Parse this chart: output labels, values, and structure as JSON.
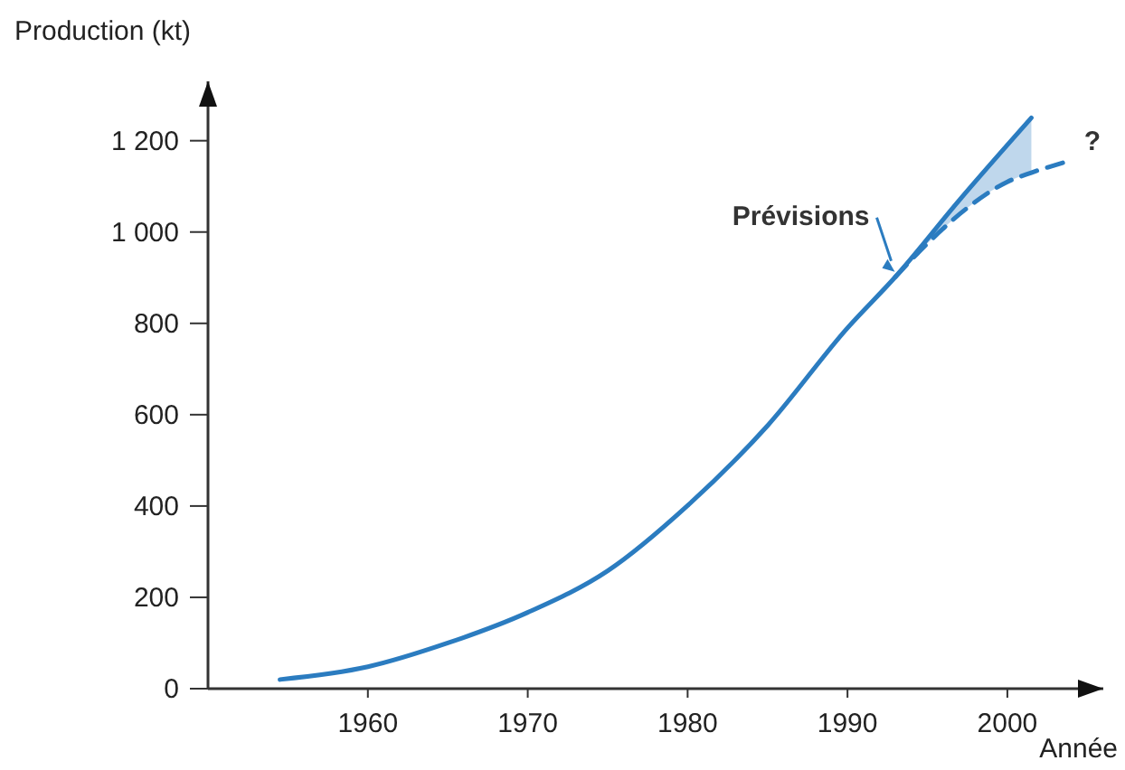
{
  "chart_data": {
    "type": "line",
    "xlabel": "Année",
    "ylabel": "Production (kt)",
    "xlim": [
      1950,
      2006
    ],
    "ylim": [
      0,
      1330
    ],
    "xticks": [
      1960,
      1970,
      1980,
      1990,
      2000
    ],
    "yticks": [
      0,
      200,
      400,
      600,
      800,
      {
        "value": 1000,
        "label": "1 000"
      },
      {
        "value": 1200,
        "label": "1 200"
      }
    ],
    "grid": false,
    "series": [
      {
        "color": "#2b7cc0",
        "line_style": "solid",
        "x": [
          1954.5,
          1960,
          1965,
          1970,
          1975,
          1980,
          1985,
          1990,
          1993,
          1997,
          2001.5
        ],
        "values": [
          20,
          48,
          100,
          167,
          258,
          401,
          576,
          790,
          902,
          1070,
          1250
        ]
      },
      {
        "color": "#2b7cc0",
        "line_style": "dashed",
        "x": [
          1993,
          1995,
          1997.5,
          2000,
          2001.5,
          2003.5
        ],
        "values": [
          902,
          975,
          1053,
          1110,
          1130,
          1152
        ],
        "lower": [
          902,
          975,
          1053,
          1110,
          1130,
          null
        ],
        "upper": [
          902,
          984,
          1086,
          1189,
          1250,
          null
        ]
      }
    ],
    "annotations": [
      {
        "text": "Prévisions",
        "x": 1993.3,
        "y": 905
      },
      "?"
    ]
  }
}
